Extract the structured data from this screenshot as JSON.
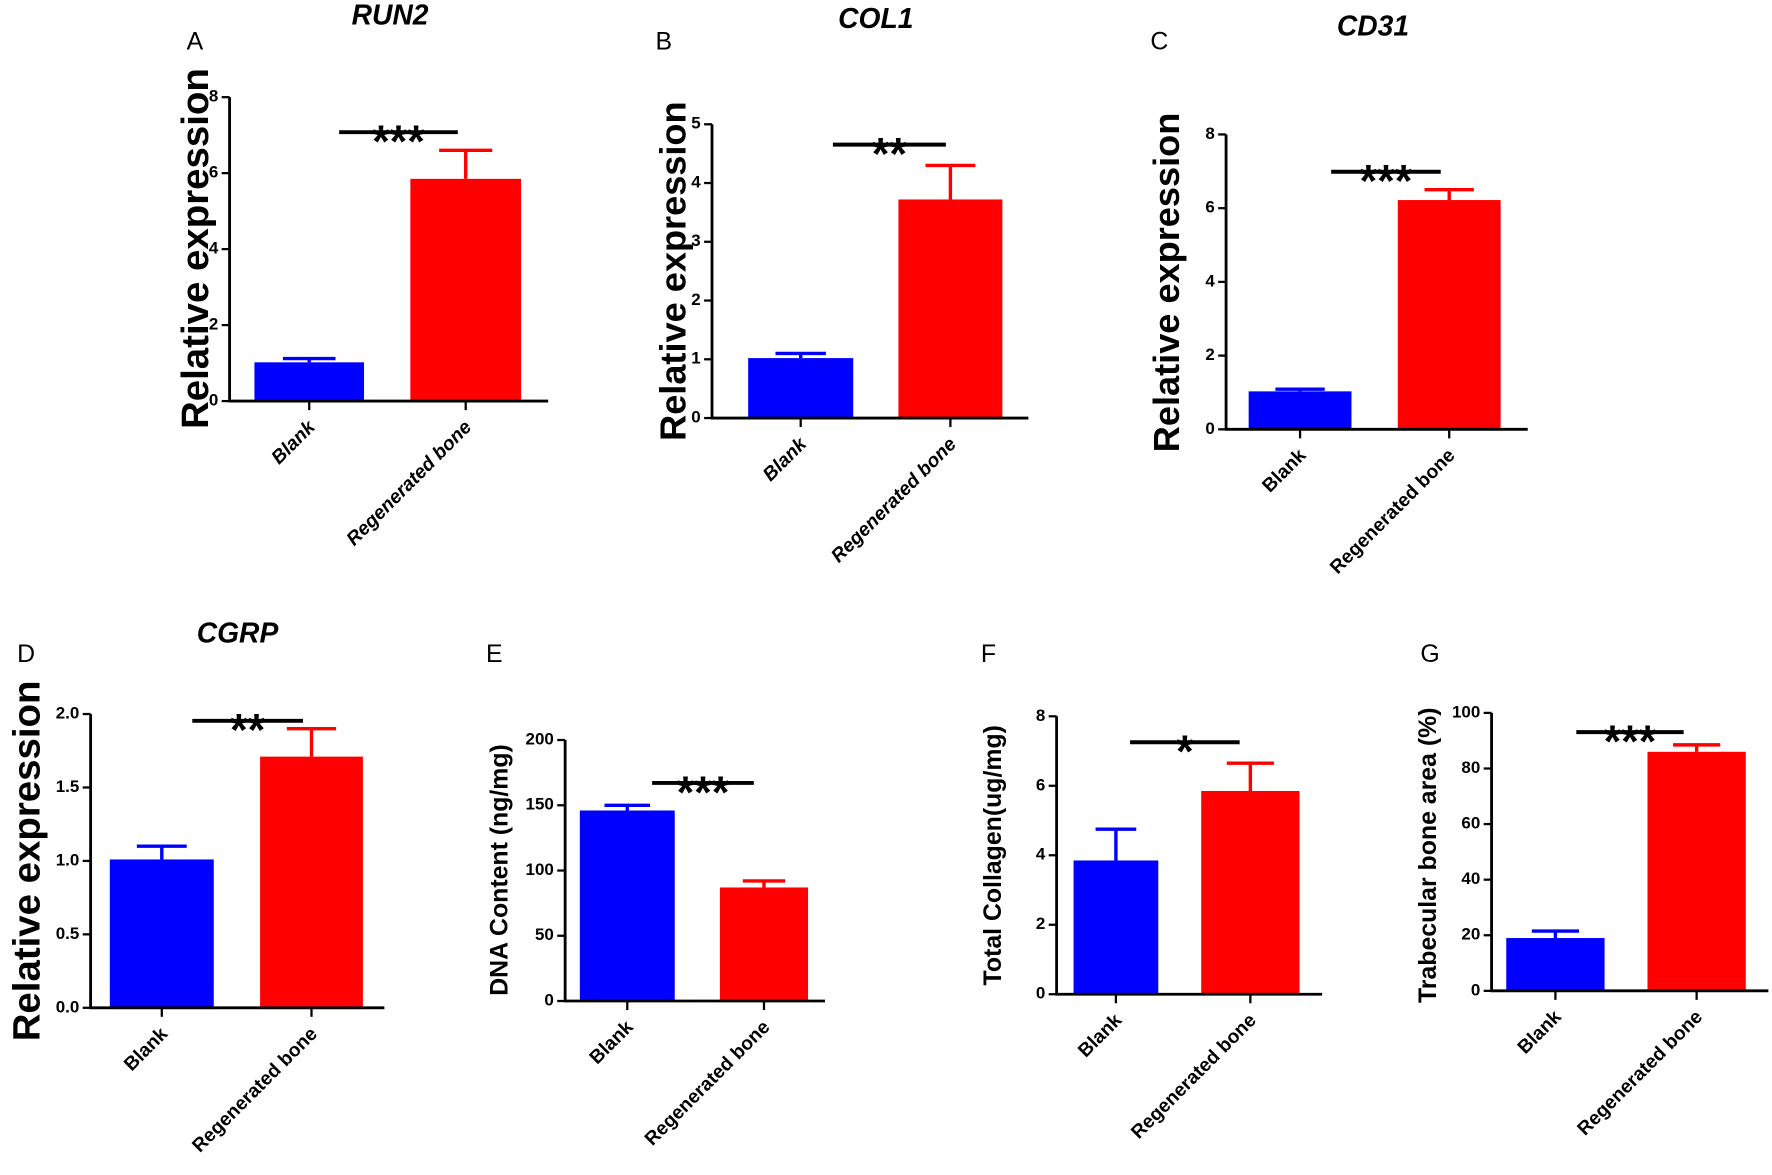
{
  "chart_data": [
    {
      "id": "A",
      "type": "bar",
      "title": "RUN2",
      "ylabel": "Relative expression",
      "ylim": [
        0,
        8
      ],
      "yticks": [
        "0",
        "2",
        "4",
        "6",
        "8"
      ],
      "yvals": [
        0,
        2,
        4,
        6,
        8
      ],
      "categories": [
        "Blank",
        "Regenerated bone"
      ],
      "values": [
        1.02,
        5.85
      ],
      "errors": [
        0.1,
        0.75
      ],
      "colors": [
        "#0000ff",
        "#ff0000"
      ],
      "significance": "***"
    },
    {
      "id": "B",
      "type": "bar",
      "title": "COL1",
      "ylabel": "Relative expression",
      "ylim": [
        0,
        5
      ],
      "yticks": [
        "0",
        "1",
        "2",
        "3",
        "4",
        "5"
      ],
      "yvals": [
        0,
        1,
        2,
        3,
        4,
        5
      ],
      "categories": [
        "Blank",
        "Regenerated bone"
      ],
      "values": [
        1.02,
        3.72
      ],
      "errors": [
        0.08,
        0.58
      ],
      "colors": [
        "#0000ff",
        "#ff0000"
      ],
      "significance": "**"
    },
    {
      "id": "C",
      "type": "bar",
      "title": "CD31",
      "ylabel": "Relative expression",
      "ylim": [
        0,
        8
      ],
      "yticks": [
        "0",
        "2",
        "4",
        "6",
        "8"
      ],
      "yvals": [
        0,
        2,
        4,
        6,
        8
      ],
      "categories": [
        "Blank",
        "Regenerated bone"
      ],
      "values": [
        1.03,
        6.22
      ],
      "errors": [
        0.06,
        0.28
      ],
      "colors": [
        "#0000ff",
        "#ff0000"
      ],
      "significance": "***"
    },
    {
      "id": "D",
      "type": "bar",
      "title": "CGRP",
      "ylabel": "Relative expression",
      "ylim": [
        0,
        2
      ],
      "yticks": [
        "0.0",
        "0.5",
        "1.0",
        "1.5",
        "2.0"
      ],
      "yvals": [
        0,
        0.5,
        1,
        1.5,
        2
      ],
      "categories": [
        "Blank",
        "Regenerated bone"
      ],
      "values": [
        1.01,
        1.71
      ],
      "errors": [
        0.09,
        0.19
      ],
      "colors": [
        "#0000ff",
        "#ff0000"
      ],
      "significance": "**"
    },
    {
      "id": "E",
      "type": "bar",
      "title": "",
      "ylabel": "DNA Content (ng/mg)",
      "ylim": [
        0,
        200
      ],
      "yticks": [
        "0",
        "50",
        "100",
        "150",
        "200"
      ],
      "yvals": [
        0,
        50,
        100,
        150,
        200
      ],
      "categories": [
        "Blank",
        "Regenerated bone"
      ],
      "values": [
        146,
        87
      ],
      "errors": [
        4,
        5
      ],
      "colors": [
        "#0000ff",
        "#ff0000"
      ],
      "significance": "***"
    },
    {
      "id": "F",
      "type": "bar",
      "title": "",
      "ylabel": "Total Collagen(ug/mg)",
      "ylim": [
        0,
        8
      ],
      "yticks": [
        "0",
        "2",
        "4",
        "6",
        "8"
      ],
      "yvals": [
        0,
        2,
        4,
        6,
        8
      ],
      "categories": [
        "Blank",
        "Regenerated bone"
      ],
      "values": [
        3.85,
        5.85
      ],
      "errors": [
        0.9,
        0.8
      ],
      "colors": [
        "#0000ff",
        "#ff0000"
      ],
      "significance": "*"
    },
    {
      "id": "G",
      "type": "bar",
      "title": "",
      "ylabel": "Trabecular bone area (%)",
      "ylim": [
        0,
        100
      ],
      "yticks": [
        "0",
        "20",
        "40",
        "60",
        "80",
        "100"
      ],
      "yvals": [
        0,
        20,
        40,
        60,
        80,
        100
      ],
      "categories": [
        "Blank",
        "Regenerated bone"
      ],
      "values": [
        19,
        86
      ],
      "errors": [
        2.5,
        2.5
      ],
      "colors": [
        "#0000ff",
        "#ff0000"
      ],
      "significance": "***"
    }
  ]
}
